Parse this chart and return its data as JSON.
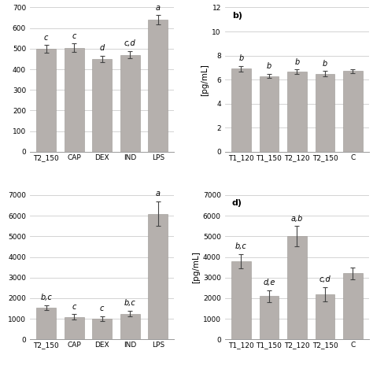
{
  "panel_a": {
    "label": "",
    "categories": [
      "T2_150",
      "CAP",
      "DEX",
      "IND",
      "LPS"
    ],
    "values": [
      500,
      505,
      450,
      470,
      640
    ],
    "errors": [
      18,
      20,
      15,
      18,
      22
    ],
    "sig_labels": [
      "c",
      "c",
      "d",
      "c,d",
      "a"
    ],
    "ylabel": "",
    "ylim": [
      0,
      700
    ],
    "yticks": [
      0,
      100,
      200,
      300,
      400,
      500,
      600,
      700
    ]
  },
  "panel_b": {
    "label": "b)",
    "categories": [
      "T1_120",
      "T1_150",
      "T2_120",
      "T2_150",
      "C"
    ],
    "values": [
      6.9,
      6.3,
      6.65,
      6.5,
      6.7
    ],
    "errors": [
      0.25,
      0.18,
      0.2,
      0.22,
      0.18
    ],
    "sig_labels": [
      "b",
      "b",
      "b",
      "b",
      ""
    ],
    "ylabel": "[pg/mL]",
    "ylim": [
      0,
      12
    ],
    "yticks": [
      0,
      2,
      4,
      6,
      8,
      10,
      12
    ]
  },
  "panel_c": {
    "label": "",
    "categories": [
      "T2_150",
      "CAP",
      "DEX",
      "IND",
      "LPS"
    ],
    "values": [
      1550,
      1100,
      1000,
      1250,
      6100
    ],
    "errors": [
      120,
      130,
      120,
      140,
      600
    ],
    "sig_labels": [
      "b,c",
      "c",
      "c",
      "b,c",
      "a"
    ],
    "ylabel": "",
    "ylim": [
      0,
      7000
    ],
    "yticks": [
      0,
      1000,
      2000,
      3000,
      4000,
      5000,
      6000,
      7000
    ]
  },
  "panel_d": {
    "label": "d)",
    "categories": [
      "T1_120",
      "T1_150",
      "T2_120",
      "T2_150",
      "C"
    ],
    "values": [
      3800,
      2100,
      5000,
      2200,
      3200
    ],
    "errors": [
      350,
      280,
      500,
      350,
      300
    ],
    "sig_labels": [
      "b,c",
      "d,e",
      "a,b",
      "c,d",
      ""
    ],
    "ylabel": "[pg/mL]",
    "ylim": [
      0,
      7000
    ],
    "yticks": [
      0,
      1000,
      2000,
      3000,
      4000,
      5000,
      6000,
      7000
    ]
  },
  "bar_color": "#b5b0ad",
  "bar_edgecolor": "#9a9591",
  "error_color": "#444444",
  "sig_fontsize": 7,
  "tick_fontsize": 6.5,
  "ylabel_fontsize": 7.5,
  "label_fontsize": 8,
  "background_color": "#ffffff",
  "grid_color": "#cccccc"
}
